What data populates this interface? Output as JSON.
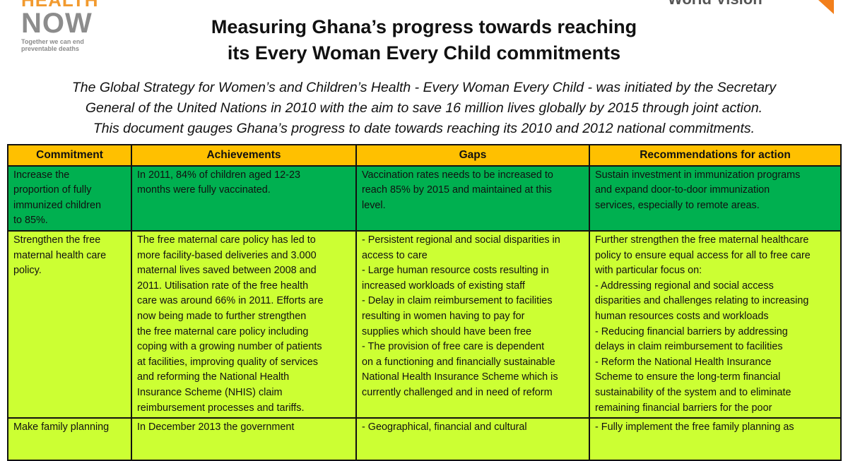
{
  "logo_left": {
    "line1": "HEALTH",
    "line2": "NOW",
    "tagline": "Together we can end\npreventable deaths"
  },
  "logo_right": {
    "text": "World Vision"
  },
  "colors": {
    "header": "#ffc000",
    "row_green": "#00b050",
    "row_lime": "#ccff33",
    "logo_orange": "#f29a2e"
  },
  "title": "Measuring Ghana’s progress towards reaching\nits Every Woman Every Child commitments",
  "intro": "The Global Strategy for Women’s and Children’s Health - Every Woman Every Child - was initiated by the Secretary\nGeneral of the United Nations in 2010 with the aim to save 16 million lives globally by 2015 through joint action.\nThis document gauges Ghana’s progress to date towards reaching its 2010 and 2012 national commitments.",
  "table": {
    "headers": [
      "Commitment",
      "Achievements",
      "Gaps",
      "Recommendations for action"
    ],
    "rows": [
      [
        "Increase the\nproportion of fully\nimmunized children\nto 85%.",
        "In 2011, 84% of children aged 12-23\nmonths were fully vaccinated.",
        "Vaccination rates needs to be increased to\nreach 85% by 2015 and maintained at this\nlevel.",
        "Sustain investment in immunization programs\nand expand door-to-door immunization\nservices, especially to remote areas."
      ],
      [
        "Strengthen the free\nmaternal health care\npolicy.",
        "The free maternal care policy has led to\nmore facility-based deliveries and 3.000\nmaternal lives saved between 2008 and\n2011. Utilisation rate of the free health\ncare was around 66% in 2011. Efforts are\nnow being made to further strengthen\nthe free maternal care policy including\ncoping with a growing number of patients\nat facilities, improving quality of services\nand reforming the National Health\nInsurance Scheme (NHIS) claim\nreimbursement processes and tariffs.",
        "- Persistent regional and social disparities in\naccess to care\n- Large human resource costs resulting in\nincreased workloads of existing staff\n- Delay in claim reimbursement to facilities\nresulting in women having to pay for\nsupplies which should have been free\n- The provision of free care is dependent\non a functioning and financially sustainable\nNational Health Insurance Scheme which is\ncurrently challenged and in need of reform",
        "Further strengthen the free maternal healthcare\npolicy to ensure equal access for all to free care\nwith particular focus on:\n- Addressing regional and social access\ndisparities and challenges relating to increasing\nhuman resources costs and workloads\n- Reducing financial barriers by addressing\ndelays in claim reimbursement to facilities\n- Reform the National Health Insurance\nScheme to ensure the long-term financial\nsustainability of the system and to eliminate\nremaining financial barriers for the poor"
      ],
      [
        "Make family planning",
        "In December 2013 the government",
        "- Geographical, financial and cultural",
        "- Fully implement the free family planning as"
      ]
    ]
  }
}
